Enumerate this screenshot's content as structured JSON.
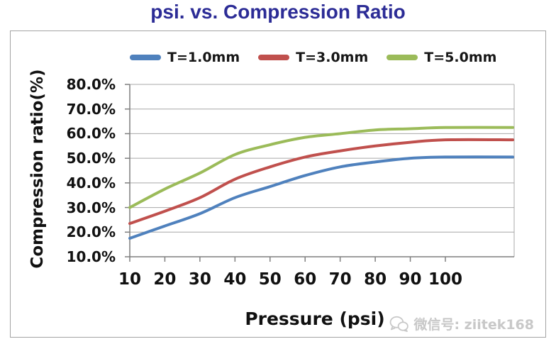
{
  "title": "psi. vs. Compression Ratio",
  "colors": {
    "title": "#2C2C96",
    "gridline": "#A8A8A8",
    "axis": "#7F7F7F",
    "chart_border": "#A3A3A3",
    "axis_text": "#111111",
    "watermark": "#C8C8C8"
  },
  "watermark": {
    "icon": "wechat-icon",
    "label": "微信号: ziitek168"
  },
  "chart_data": {
    "type": "line",
    "title": "psi. vs. Compression Ratio",
    "xlabel": "Pressure (psi)",
    "ylabel": "Compression ratio(%)",
    "x": [
      10,
      20,
      30,
      40,
      50,
      60,
      70,
      80,
      90,
      100
    ],
    "x_tick_labels": [
      "10",
      "20",
      "30",
      "40",
      "50",
      "60",
      "70",
      "80",
      "90",
      "100"
    ],
    "y_tick_labels": [
      "80.0%",
      "70.0%",
      "60.0%",
      "50.0%",
      "40.0%",
      "30.0%",
      "20.0%",
      "10.0%"
    ],
    "ylim": [
      10,
      80
    ],
    "y_major_unit": 10,
    "y_tick_format": "percent-one-decimal",
    "grid": "horizontal-only",
    "legend_position": "top-center",
    "curve_style": "smooth",
    "plot_extends_beyond_last_x_tick": true,
    "series": [
      {
        "name": "T=1.0mm",
        "color": "#4F81BD",
        "values": [
          17.5,
          22.5,
          27.5,
          34,
          38.5,
          43,
          46.5,
          48.5,
          50,
          50.5
        ]
      },
      {
        "name": "T=3.0mm",
        "color": "#C0504D",
        "values": [
          23.5,
          28.5,
          34,
          41.5,
          46.5,
          50.5,
          53,
          55,
          56.5,
          57.5
        ]
      },
      {
        "name": "T=5.0mm",
        "color": "#9BBB59",
        "values": [
          30,
          37.5,
          44,
          51.5,
          55.5,
          58.5,
          60,
          61.5,
          62,
          62.5
        ]
      }
    ]
  }
}
